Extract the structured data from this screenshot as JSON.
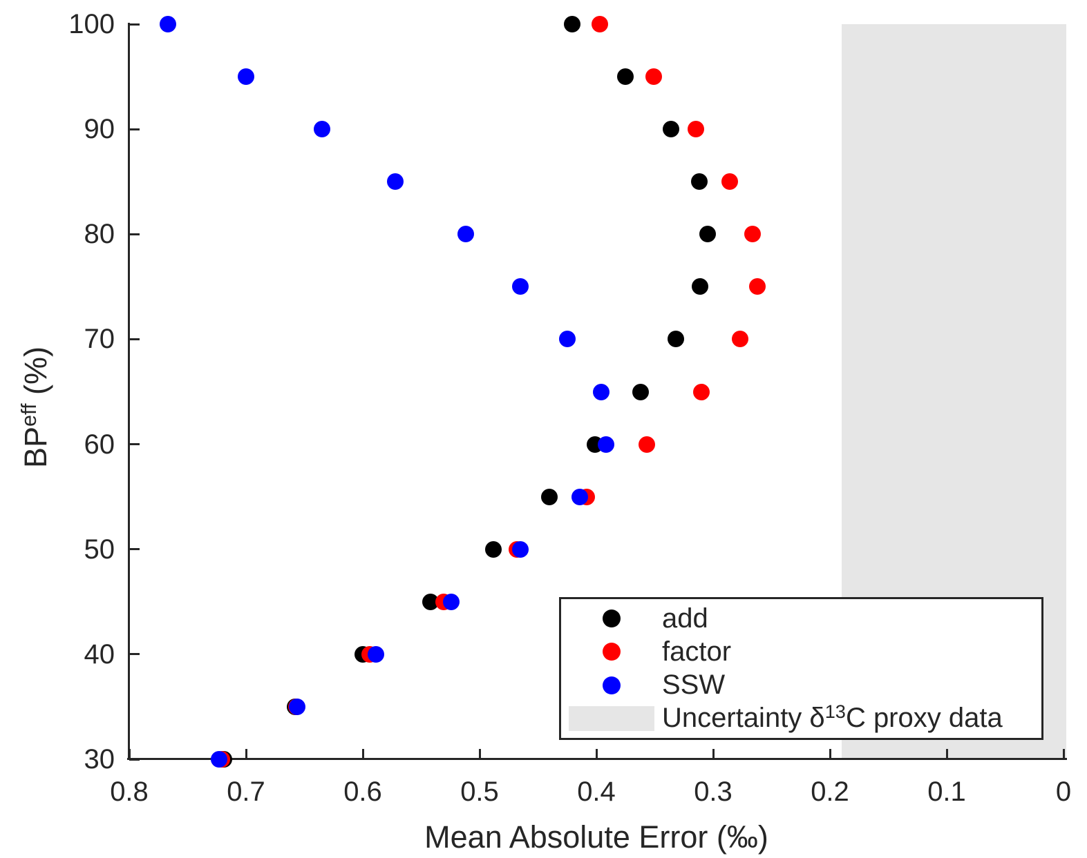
{
  "chart_data": {
    "type": "scatter",
    "title": "",
    "x_axis": {
      "label": "Mean Absolute Error (‰)",
      "range": [
        0.8,
        0
      ],
      "reversed": true,
      "ticks": [
        0.8,
        0.7,
        0.6,
        0.5,
        0.4,
        0.3,
        0.2,
        0.1,
        0
      ],
      "tick_labels": [
        "0.8",
        "0.7",
        "0.6",
        "0.5",
        "0.4",
        "0.3",
        "0.2",
        "0.1",
        "0"
      ]
    },
    "y_axis": {
      "label": "BPeff (%)",
      "label_parts": {
        "base": "BP",
        "sup": "eff",
        "suffix": " (%)"
      },
      "range": [
        30,
        100
      ],
      "ticks": [
        30,
        40,
        50,
        60,
        70,
        80,
        90,
        100
      ],
      "tick_labels": [
        "30",
        "40",
        "50",
        "60",
        "70",
        "80",
        "90",
        "100"
      ]
    },
    "bp_levels": [
      100,
      95,
      90,
      85,
      80,
      75,
      70,
      65,
      60,
      55,
      50,
      45,
      40,
      35,
      30
    ],
    "series": [
      {
        "name": "add",
        "color": "#000000",
        "values": [
          0.421,
          0.375,
          0.336,
          0.312,
          0.305,
          0.311,
          0.332,
          0.362,
          0.401,
          0.44,
          0.488,
          0.542,
          0.6,
          0.658,
          0.719
        ]
      },
      {
        "name": "factor",
        "color": "#ff0000",
        "values": [
          0.397,
          0.351,
          0.315,
          0.286,
          0.266,
          0.262,
          0.277,
          0.31,
          0.357,
          0.408,
          0.468,
          0.531,
          0.594,
          0.657,
          0.721
        ]
      },
      {
        "name": "SSW",
        "color": "#0000ff",
        "values": [
          0.767,
          0.7,
          0.635,
          0.572,
          0.512,
          0.465,
          0.425,
          0.396,
          0.392,
          0.414,
          0.465,
          0.524,
          0.589,
          0.656,
          0.723
        ]
      }
    ],
    "uncertainty_region": {
      "label": "Uncertainty δ13C proxy data",
      "label_prefix": "Uncertainty δ",
      "label_sup": "13",
      "label_suffix": "C proxy data",
      "x_from": 0.19,
      "x_to": 0,
      "color": "#e6e6e6"
    },
    "legend": {
      "position": "lower right",
      "entries": [
        "add",
        "factor",
        "SSW",
        "Uncertainty δ13C proxy data"
      ]
    }
  }
}
